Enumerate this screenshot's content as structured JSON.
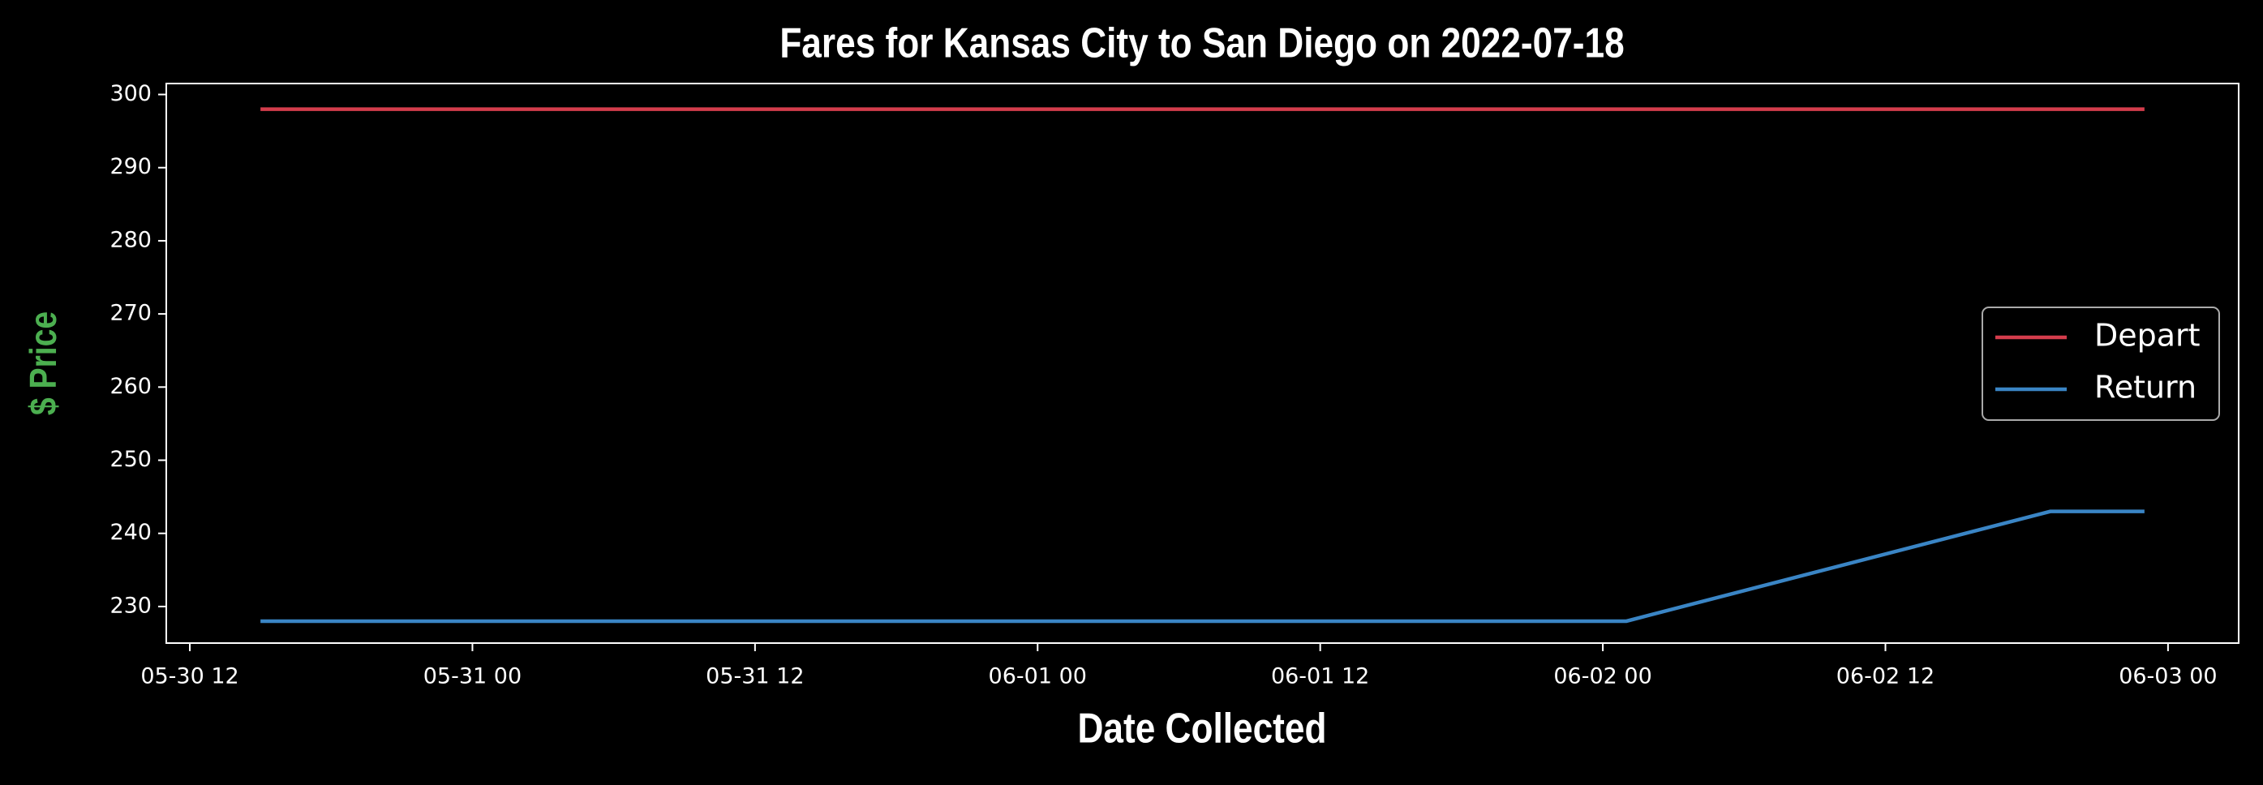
{
  "chart_data": {
    "type": "line",
    "title": "Fares for Kansas City to San Diego on 2022-07-18",
    "x_label": "Date Collected",
    "y_label": "$ Price",
    "x": [
      "05-30 15",
      "06-02 01",
      "06-02 19",
      "06-02 23"
    ],
    "series": [
      {
        "name": "Depart",
        "color": "#d43d4c",
        "values": [
          298,
          298,
          298,
          298
        ]
      },
      {
        "name": "Return",
        "color": "#3a85c5",
        "values": [
          228,
          228,
          243,
          243
        ]
      }
    ],
    "xlim": [
      "05-30 11",
      "06-03 03"
    ],
    "xticks": [
      "05-30 12",
      "05-31 00",
      "05-31 12",
      "06-01 00",
      "06-01 12",
      "06-02 00",
      "06-02 12",
      "06-03 00"
    ],
    "ylim": [
      225,
      301.5
    ],
    "yticks": [
      230,
      240,
      250,
      260,
      270,
      280,
      290,
      300
    ],
    "grid": false,
    "legend": "right"
  }
}
